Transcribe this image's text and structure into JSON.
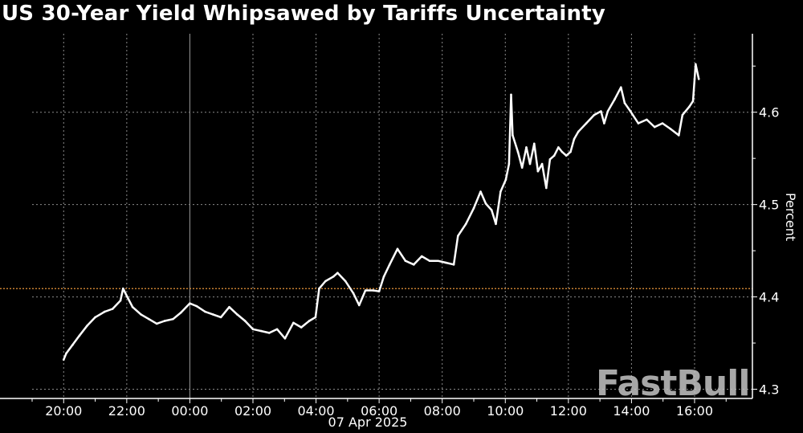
{
  "chart_data": {
    "type": "line",
    "title": "US 30-Year Yield Whipsawed by Tariffs Uncertainty",
    "ylabel": "Percent",
    "xlabel": "",
    "date_label": "07 Apr 2025",
    "xlim": [
      "19:00",
      "17:50"
    ],
    "ylim": [
      4.29,
      4.685
    ],
    "x_ticks": [
      "20:00",
      "22:00",
      "00:00",
      "02:00",
      "04:00",
      "06:00",
      "08:00",
      "10:00",
      "12:00",
      "14:00",
      "16:00"
    ],
    "y_ticks": [
      "4.3",
      "4.4",
      "4.5",
      "4.6"
    ],
    "y_tick_values": [
      4.3,
      4.4,
      4.5,
      4.6
    ],
    "grid": true,
    "reference_line": {
      "value": 4.409,
      "color": "#e8953a"
    },
    "colors": {
      "line": "#ffffff",
      "background": "#000000",
      "grid": "#8a8a8a"
    },
    "watermark": "FastBull",
    "series": [
      {
        "x": [
          "20:00",
          "20:05",
          "20:17",
          "20:30",
          "20:45",
          "21:00",
          "21:18",
          "21:33",
          "21:48",
          "21:53",
          "22:01",
          "22:11",
          "22:27",
          "22:42",
          "22:57",
          "23:12",
          "23:28",
          "23:43",
          "00:00",
          "00:13",
          "00:29",
          "00:44",
          "00:59",
          "01:15",
          "01:30",
          "01:45",
          "02:00",
          "02:16",
          "02:31",
          "02:46",
          "03:01",
          "03:17",
          "03:32",
          "03:47",
          "03:59",
          "04:06",
          "04:18",
          "04:33",
          "04:41",
          "04:56",
          "05:11",
          "05:22",
          "05:34",
          "05:49",
          "06:00",
          "06:09",
          "06:20",
          "06:35",
          "06:50",
          "07:06",
          "07:21",
          "07:36",
          "07:52",
          "08:07",
          "08:22",
          "08:30",
          "08:45",
          "09:00",
          "09:13",
          "09:23",
          "09:34",
          "09:42",
          "09:51",
          "10:01",
          "10:07",
          "10:11",
          "10:14",
          "10:24",
          "10:32",
          "10:40",
          "10:47",
          "10:55",
          "11:02",
          "11:10",
          "11:18",
          "11:25",
          "11:33",
          "11:41",
          "11:48",
          "11:56",
          "12:04",
          "12:11",
          "12:19",
          "12:34",
          "12:49",
          "13:02",
          "13:08",
          "13:15",
          "13:28",
          "13:40",
          "13:47",
          "13:58",
          "14:13",
          "14:29",
          "14:44",
          "14:59",
          "15:14",
          "15:30",
          "15:37",
          "15:50",
          "15:57",
          "16:00",
          "16:02",
          "16:08"
        ],
        "values": [
          4.332,
          4.339,
          4.348,
          4.358,
          4.369,
          4.378,
          4.384,
          4.387,
          4.396,
          4.409,
          4.4,
          4.389,
          4.381,
          4.376,
          4.371,
          4.374,
          4.376,
          4.383,
          4.393,
          4.39,
          4.384,
          4.381,
          4.378,
          4.389,
          4.381,
          4.374,
          4.365,
          4.363,
          4.361,
          4.365,
          4.355,
          4.372,
          4.367,
          4.374,
          4.378,
          4.409,
          4.417,
          4.422,
          4.426,
          4.417,
          4.404,
          4.391,
          4.407,
          4.407,
          4.406,
          4.422,
          4.435,
          4.452,
          4.439,
          4.435,
          4.444,
          4.439,
          4.439,
          4.437,
          4.435,
          4.466,
          4.479,
          4.496,
          4.514,
          4.501,
          4.494,
          4.479,
          4.514,
          4.527,
          4.544,
          4.619,
          4.575,
          4.557,
          4.54,
          4.562,
          4.544,
          4.566,
          4.536,
          4.544,
          4.518,
          4.549,
          4.553,
          4.562,
          4.557,
          4.553,
          4.557,
          4.571,
          4.579,
          4.588,
          4.597,
          4.601,
          4.588,
          4.601,
          4.614,
          4.627,
          4.61,
          4.601,
          4.588,
          4.592,
          4.584,
          4.588,
          4.582,
          4.575,
          4.597,
          4.606,
          4.612,
          4.636,
          4.652,
          4.636
        ]
      }
    ]
  }
}
